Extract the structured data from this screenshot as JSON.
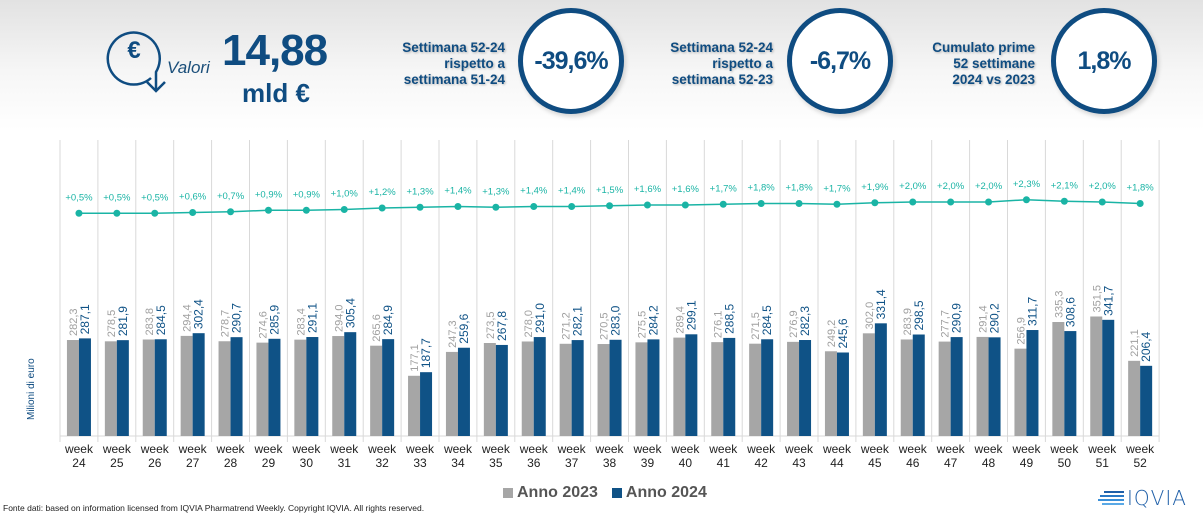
{
  "header": {
    "icon": "euro-down-arrow-icon",
    "valori_label": "Valori",
    "total_value": "14,88",
    "total_unit": "mld €",
    "kpis": [
      {
        "line1": "Settimana 52-24",
        "line2": "rispetto a",
        "line3": "settimana 51-24",
        "value": "-39,6%"
      },
      {
        "line1": "Settimana 52-24",
        "line2": "rispetto a",
        "line3": "settimana 52-23",
        "value": "-6,7%"
      },
      {
        "line1": "Cumulato prime",
        "line2": "52 settimane",
        "line3": "2024 vs 2023",
        "value": "1,8%"
      }
    ]
  },
  "colors": {
    "anno_2023": "#a6a6a6",
    "anno_2024": "#0f5286",
    "cumulative_line": "#1ab4a5",
    "grid": "#d9d9d9",
    "brand": "#0f4c81"
  },
  "chart_data": {
    "type": "bar",
    "title": "",
    "xlabel": "",
    "ylabel": "Milioni di euro",
    "categories": [
      "week 24",
      "week 25",
      "week 26",
      "week 27",
      "week 28",
      "week 29",
      "week 30",
      "week 31",
      "week 32",
      "week 33",
      "week 34",
      "week 35",
      "week 36",
      "week 37",
      "week 38",
      "week 39",
      "week 40",
      "week 41",
      "week 42",
      "week 43",
      "week 44",
      "week 45",
      "week 46",
      "week 47",
      "week 48",
      "week 49",
      "week 50",
      "week 51",
      "week 52"
    ],
    "category_words": [
      "week",
      "week",
      "week",
      "week",
      "week",
      "week",
      "week",
      "week",
      "week",
      "week",
      "week",
      "week",
      "week",
      "week",
      "week",
      "week",
      "week",
      "week",
      "week",
      "week",
      "week",
      "week",
      "week",
      "week",
      "week",
      "week",
      "week",
      "week",
      "week"
    ],
    "category_numbers": [
      "24",
      "25",
      "26",
      "27",
      "28",
      "29",
      "30",
      "31",
      "32",
      "33",
      "34",
      "35",
      "36",
      "37",
      "38",
      "39",
      "40",
      "41",
      "42",
      "43",
      "44",
      "45",
      "46",
      "47",
      "48",
      "49",
      "50",
      "51",
      "52"
    ],
    "series": [
      {
        "name": "Anno 2023",
        "values": [
          282.3,
          278.5,
          283.8,
          294.4,
          278.7,
          274.6,
          283.4,
          294.0,
          265.6,
          177.1,
          247.3,
          273.5,
          278.0,
          271.2,
          270.5,
          275.5,
          289.4,
          276.1,
          271.5,
          276.9,
          249.2,
          302.0,
          283.9,
          277.7,
          291.4,
          256.9,
          335.3,
          351.5,
          221.1
        ],
        "labels": [
          "282,3",
          "278,5",
          "283,8",
          "294,4",
          "278,7",
          "274,6",
          "283,4",
          "294,0",
          "265,6",
          "177,1",
          "247,3",
          "273,5",
          "278,0",
          "271,2",
          "270,5",
          "275,5",
          "289,4",
          "276,1",
          "271,5",
          "276,9",
          "249,2",
          "302,0",
          "283,9",
          "277,7",
          "291,4",
          "256,9",
          "335,3",
          "351,5",
          "221,1"
        ]
      },
      {
        "name": "Anno 2024",
        "values": [
          287.1,
          281.9,
          284.5,
          302.4,
          290.7,
          285.9,
          291.1,
          305.4,
          284.9,
          187.7,
          259.6,
          267.8,
          291.0,
          282.1,
          283.0,
          284.2,
          299.1,
          288.5,
          284.5,
          282.3,
          245.6,
          331.4,
          298.5,
          290.9,
          290.2,
          311.7,
          308.6,
          341.7,
          206.4
        ],
        "labels": [
          "287,1",
          "281,9",
          "284,5",
          "302,4",
          "290,7",
          "285,9",
          "291,1",
          "305,4",
          "284,9",
          "187,7",
          "259,6",
          "267,8",
          "291,0",
          "282,1",
          "283,0",
          "284,2",
          "299,1",
          "288,5",
          "284,5",
          "282,3",
          "245,6",
          "331,4",
          "298,5",
          "290,9",
          "290,2",
          "311,7",
          "308,6",
          "341,7",
          "206,4"
        ]
      }
    ],
    "line_series": {
      "name": "Cumulato 2024 vs 2023",
      "values": [
        0.5,
        0.5,
        0.5,
        0.6,
        0.7,
        0.9,
        0.9,
        1.0,
        1.2,
        1.3,
        1.4,
        1.3,
        1.4,
        1.4,
        1.5,
        1.6,
        1.6,
        1.7,
        1.8,
        1.8,
        1.7,
        1.9,
        2.0,
        2.0,
        2.0,
        2.3,
        2.1,
        2.0,
        1.8
      ],
      "labels": [
        "+0,5%",
        "+0,5%",
        "+0,5%",
        "+0,6%",
        "+0,7%",
        "+0,9%",
        "+0,9%",
        "+1,0%",
        "+1,2%",
        "+1,3%",
        "+1,4%",
        "+1,3%",
        "+1,4%",
        "+1,4%",
        "+1,5%",
        "+1,6%",
        "+1,6%",
        "+1,7%",
        "+1,8%",
        "+1,8%",
        "+1,7%",
        "+1,9%",
        "+2,0%",
        "+2,0%",
        "+2,0%",
        "+2,3%",
        "+2,1%",
        "+2,0%",
        "+1,8%"
      ]
    },
    "ylim": [
      0,
      400
    ],
    "grid": "vertical category separators",
    "legend": "bottom-center"
  },
  "legend": {
    "item_2023": "Anno 2023",
    "item_2024": "Anno 2024"
  },
  "footer": {
    "source": "Fonte dati: based on information licensed from IQVIA Pharmatrend Weekly. Copyright IQVIA. All rights reserved.",
    "logo_text": "IQVIA"
  }
}
